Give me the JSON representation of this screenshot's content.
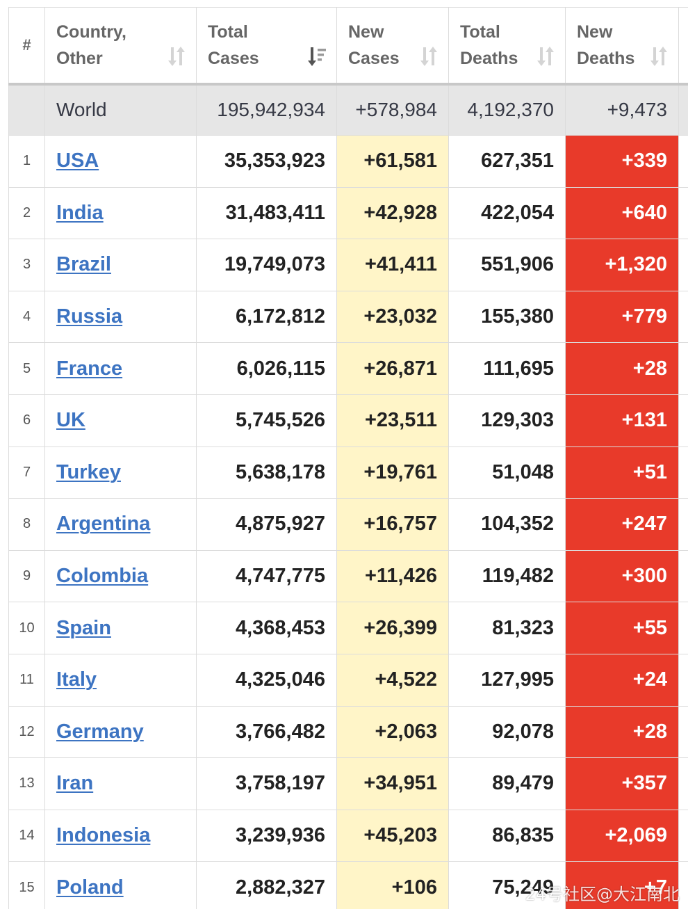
{
  "table": {
    "headers": {
      "num": "#",
      "country": [
        "Country,",
        "Other"
      ],
      "total_cases": [
        "Total",
        "Cases"
      ],
      "new_cases": [
        "New",
        "Cases"
      ],
      "total_deaths": [
        "Total",
        "Deaths"
      ],
      "new_deaths": [
        "New",
        "Deaths"
      ]
    },
    "world": {
      "country": "World",
      "total_cases": "195,942,934",
      "new_cases": "+578,984",
      "total_deaths": "4,192,370",
      "new_deaths": "+9,473"
    },
    "rows": [
      {
        "num": "1",
        "country": "USA",
        "total_cases": "35,353,923",
        "new_cases": "+61,581",
        "total_deaths": "627,351",
        "new_deaths": "+339"
      },
      {
        "num": "2",
        "country": "India",
        "total_cases": "31,483,411",
        "new_cases": "+42,928",
        "total_deaths": "422,054",
        "new_deaths": "+640"
      },
      {
        "num": "3",
        "country": "Brazil",
        "total_cases": "19,749,073",
        "new_cases": "+41,411",
        "total_deaths": "551,906",
        "new_deaths": "+1,320"
      },
      {
        "num": "4",
        "country": "Russia",
        "total_cases": "6,172,812",
        "new_cases": "+23,032",
        "total_deaths": "155,380",
        "new_deaths": "+779"
      },
      {
        "num": "5",
        "country": "France",
        "total_cases": "6,026,115",
        "new_cases": "+26,871",
        "total_deaths": "111,695",
        "new_deaths": "+28"
      },
      {
        "num": "6",
        "country": "UK",
        "total_cases": "5,745,526",
        "new_cases": "+23,511",
        "total_deaths": "129,303",
        "new_deaths": "+131"
      },
      {
        "num": "7",
        "country": "Turkey",
        "total_cases": "5,638,178",
        "new_cases": "+19,761",
        "total_deaths": "51,048",
        "new_deaths": "+51"
      },
      {
        "num": "8",
        "country": "Argentina",
        "total_cases": "4,875,927",
        "new_cases": "+16,757",
        "total_deaths": "104,352",
        "new_deaths": "+247"
      },
      {
        "num": "9",
        "country": "Colombia",
        "total_cases": "4,747,775",
        "new_cases": "+11,426",
        "total_deaths": "119,482",
        "new_deaths": "+300"
      },
      {
        "num": "10",
        "country": "Spain",
        "total_cases": "4,368,453",
        "new_cases": "+26,399",
        "total_deaths": "81,323",
        "new_deaths": "+55"
      },
      {
        "num": "11",
        "country": "Italy",
        "total_cases": "4,325,046",
        "new_cases": "+4,522",
        "total_deaths": "127,995",
        "new_deaths": "+24"
      },
      {
        "num": "12",
        "country": "Germany",
        "total_cases": "3,766,482",
        "new_cases": "+2,063",
        "total_deaths": "92,078",
        "new_deaths": "+28"
      },
      {
        "num": "13",
        "country": "Iran",
        "total_cases": "3,758,197",
        "new_cases": "+34,951",
        "total_deaths": "89,479",
        "new_deaths": "+357"
      },
      {
        "num": "14",
        "country": "Indonesia",
        "total_cases": "3,239,936",
        "new_cases": "+45,203",
        "total_deaths": "86,835",
        "new_deaths": "+2,069"
      },
      {
        "num": "15",
        "country": "Poland",
        "total_cases": "2,882,327",
        "new_cases": "+106",
        "total_deaths": "75,249",
        "new_deaths": "+7"
      }
    ]
  },
  "colors": {
    "link": "#3d74c2",
    "new_cases_bg": "#fff5c8",
    "new_deaths_bg": "#e83a2a",
    "world_row_bg": "#e6e6e6"
  },
  "icons": {
    "sort_default": "sort-arrows-icon",
    "sort_active": "sort-descending-icon"
  },
  "watermark": "24号社区@大江南北"
}
